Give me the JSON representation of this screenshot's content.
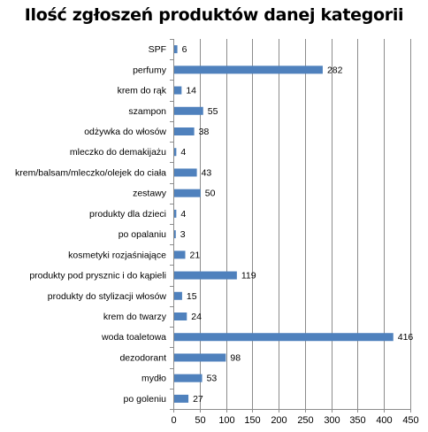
{
  "chart_data": {
    "type": "bar",
    "orientation": "horizontal",
    "title": "Ilość zgłoszeń produktów danej kategorii",
    "categories": [
      "SPF",
      "perfumy",
      "krem do rąk",
      "szampon",
      "odżywka do włosów",
      "mleczko do demakijażu",
      "krem/balsam/mleczko/olejek do ciała",
      "zestawy",
      "produkty dla dzieci",
      "po opalaniu",
      "kosmetyki rozjaśniające",
      "produkty pod prysznic i do kąpieli",
      "produkty do stylizacji włosów",
      "krem do twarzy",
      "woda toaletowa",
      "dezodorant",
      "mydło",
      "po goleniu"
    ],
    "values": [
      6,
      282,
      14,
      55,
      38,
      4,
      43,
      50,
      4,
      3,
      21,
      119,
      15,
      24,
      416,
      98,
      53,
      27
    ],
    "xlim": [
      0,
      450
    ],
    "xticks": [
      0,
      50,
      100,
      150,
      200,
      250,
      300,
      350,
      400,
      450
    ],
    "xlabel": "",
    "ylabel": "",
    "grid": "vertical",
    "legend": "none",
    "bar_color": "#4F81BD"
  }
}
